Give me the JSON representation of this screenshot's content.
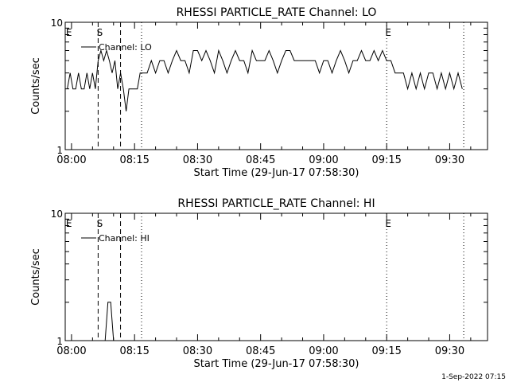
{
  "footer": {
    "stamp": "1-Sep-2022 07:15"
  },
  "chart_data": [
    {
      "type": "line",
      "title": "RHESSI PARTICLE_RATE Channel: LO",
      "xlabel": "Start Time (29-Jun-17 07:58:30)",
      "ylabel": "Counts/sec",
      "y_scale": "log",
      "ylim": [
        1,
        10
      ],
      "y_ticks": [
        1,
        10
      ],
      "y_tick_labels": [
        "1",
        "10"
      ],
      "xlim": [
        "07:58:30",
        "09:39:00"
      ],
      "x_ticks": [
        "08:00",
        "08:15",
        "08:30",
        "08:45",
        "09:00",
        "09:15",
        "09:30"
      ],
      "legend": {
        "placement": "top-left",
        "entries": [
          "Channel: LO"
        ]
      },
      "grid": false,
      "annotations": [
        {
          "label": "E",
          "time": "07:59:00",
          "style": "none"
        },
        {
          "label": "S",
          "time": "08:06:20",
          "style": "dashed"
        },
        {
          "label": "",
          "time": "08:11:40",
          "style": "dashed"
        },
        {
          "label": "",
          "time": "08:16:40",
          "style": "dotted"
        },
        {
          "label": "E",
          "time": "09:15:00",
          "style": "dotted"
        },
        {
          "label": "",
          "time": "09:33:20",
          "style": "dotted"
        }
      ],
      "series": [
        {
          "name": "Channel: LO",
          "x": [
            "07:59:00",
            "07:59:40",
            "08:00:20",
            "08:01:00",
            "08:01:40",
            "08:02:20",
            "08:03:00",
            "08:03:40",
            "08:04:20",
            "08:05:00",
            "08:05:40",
            "08:06:20",
            "08:07:00",
            "08:07:40",
            "08:08:20",
            "08:09:00",
            "08:09:40",
            "08:10:20",
            "08:11:00",
            "08:11:40",
            "08:12:20",
            "08:13:00",
            "08:13:40",
            "08:14:20",
            "08:15:00",
            "08:15:40",
            "08:16:20",
            "08:17:00",
            "08:18:00",
            "08:19:00",
            "08:20:00",
            "08:21:00",
            "08:22:00",
            "08:23:00",
            "08:24:00",
            "08:25:00",
            "08:26:00",
            "08:27:00",
            "08:28:00",
            "08:29:00",
            "08:30:00",
            "08:31:00",
            "08:32:00",
            "08:33:00",
            "08:34:00",
            "08:35:00",
            "08:36:00",
            "08:37:00",
            "08:38:00",
            "08:39:00",
            "08:40:00",
            "08:41:00",
            "08:42:00",
            "08:43:00",
            "08:44:00",
            "08:45:00",
            "08:46:00",
            "08:47:00",
            "08:48:00",
            "08:49:00",
            "08:50:00",
            "08:51:00",
            "08:52:00",
            "08:53:00",
            "08:54:00",
            "08:55:00",
            "08:56:00",
            "08:57:00",
            "08:58:00",
            "08:59:00",
            "09:00:00",
            "09:01:00",
            "09:02:00",
            "09:03:00",
            "09:04:00",
            "09:05:00",
            "09:06:00",
            "09:07:00",
            "09:08:00",
            "09:09:00",
            "09:10:00",
            "09:11:00",
            "09:12:00",
            "09:13:00",
            "09:14:00",
            "09:15:00",
            "09:16:00",
            "09:17:00",
            "09:18:00",
            "09:19:00",
            "09:20:00",
            "09:21:00",
            "09:22:00",
            "09:23:00",
            "09:24:00",
            "09:25:00",
            "09:26:00",
            "09:27:00",
            "09:28:00",
            "09:29:00",
            "09:30:00",
            "09:31:00",
            "09:32:00",
            "09:33:00"
          ],
          "values": [
            3,
            4,
            3,
            3,
            4,
            3,
            3,
            4,
            3,
            4,
            3,
            5,
            6,
            5,
            6,
            5,
            4,
            5,
            3,
            4,
            3,
            2,
            3,
            3,
            3,
            3,
            4,
            4,
            4,
            5,
            4,
            5,
            5,
            4,
            5,
            6,
            5,
            5,
            4,
            6,
            6,
            5,
            6,
            5,
            4,
            6,
            5,
            4,
            5,
            6,
            5,
            5,
            4,
            6,
            5,
            5,
            5,
            6,
            5,
            4,
            5,
            6,
            6,
            5,
            5,
            5,
            5,
            5,
            5,
            4,
            5,
            5,
            4,
            5,
            6,
            5,
            4,
            5,
            5,
            6,
            5,
            5,
            6,
            5,
            6,
            5,
            5,
            4,
            4,
            4,
            3,
            4,
            3,
            4,
            3,
            4,
            4,
            3,
            4,
            3,
            4,
            3,
            4,
            3
          ]
        }
      ]
    },
    {
      "type": "line",
      "title": "RHESSI PARTICLE_RATE Channel: HI",
      "xlabel": "Start Time (29-Jun-17 07:58:30)",
      "ylabel": "Counts/sec",
      "y_scale": "log",
      "ylim": [
        1,
        10
      ],
      "y_ticks": [
        1,
        10
      ],
      "y_tick_labels": [
        "1",
        "10"
      ],
      "xlim": [
        "07:58:30",
        "09:39:00"
      ],
      "x_ticks": [
        "08:00",
        "08:15",
        "08:30",
        "08:45",
        "09:00",
        "09:15",
        "09:30"
      ],
      "legend": {
        "placement": "top-left",
        "entries": [
          "Channel: HI"
        ]
      },
      "grid": false,
      "annotations": [
        {
          "label": "E",
          "time": "07:59:00",
          "style": "none"
        },
        {
          "label": "S",
          "time": "08:06:20",
          "style": "dashed"
        },
        {
          "label": "",
          "time": "08:11:40",
          "style": "dashed"
        },
        {
          "label": "",
          "time": "08:16:40",
          "style": "dotted"
        },
        {
          "label": "E",
          "time": "09:15:00",
          "style": "dotted"
        },
        {
          "label": "",
          "time": "09:33:20",
          "style": "dotted"
        }
      ],
      "series": [
        {
          "name": "Channel: HI",
          "x": [
            "08:08:00",
            "08:08:40",
            "08:09:20",
            "08:10:00"
          ],
          "values": [
            1,
            2,
            2,
            1
          ]
        }
      ]
    }
  ]
}
